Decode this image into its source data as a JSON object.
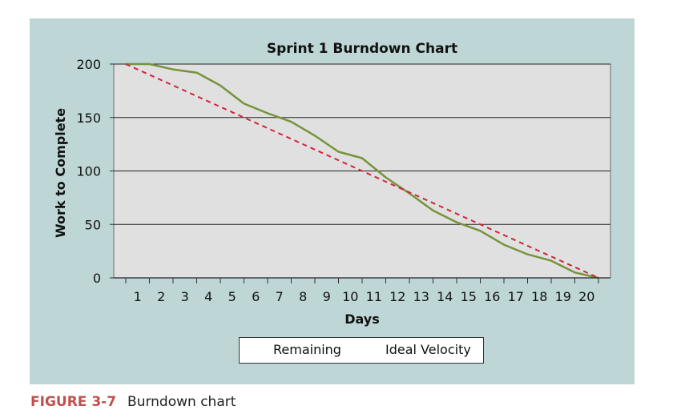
{
  "colors": {
    "panel": "#bed6d6",
    "plot": "#e0e0e0",
    "remaining": "#77933c",
    "ideal": "#d0243c",
    "figure_label": "#c0504d"
  },
  "caption": {
    "figure_number": "FIGURE 3-7",
    "text": "Burndown chart"
  },
  "chart_data": {
    "type": "line",
    "title": "Sprint 1 Burndown Chart",
    "xlabel": "Days",
    "ylabel": "Work to Complete",
    "x_ticks": [
      "1",
      "2",
      "3",
      "4",
      "5",
      "6",
      "7",
      "8",
      "9",
      "10",
      "11",
      "12",
      "13",
      "14",
      "15",
      "16",
      "17",
      "18",
      "19",
      "20"
    ],
    "y_ticks": [
      "0",
      "50",
      "100",
      "150",
      "200"
    ],
    "ylim": [
      0,
      200
    ],
    "xlim": [
      0,
      20
    ],
    "grid": true,
    "legend_position": "bottom-center",
    "series": [
      {
        "name": "Remaining",
        "style": "solid",
        "x": [
          0,
          1,
          2,
          3,
          4,
          5,
          6,
          7,
          8,
          9,
          10,
          11,
          12,
          13,
          14,
          15,
          16,
          17,
          18,
          19,
          20
        ],
        "y": [
          200,
          200,
          195,
          192,
          180,
          163,
          154,
          146,
          133,
          118,
          112,
          94,
          79,
          63,
          52,
          44,
          31,
          22,
          16,
          5,
          0
        ]
      },
      {
        "name": "Ideal Velocity",
        "style": "dashed",
        "x": [
          0,
          20
        ],
        "y": [
          200,
          0
        ]
      }
    ]
  }
}
